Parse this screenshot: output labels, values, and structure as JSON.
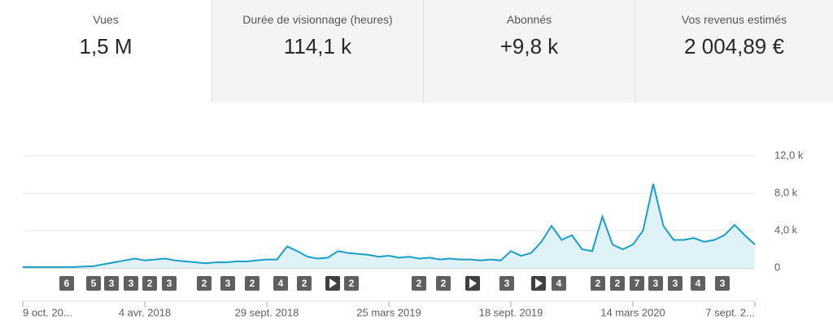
{
  "cards": [
    {
      "label": "Vues",
      "value": "1,5 M"
    },
    {
      "label": "Durée de visionnage (heures)",
      "value": "114,1 k"
    },
    {
      "label": "Abonnés",
      "value": "+9,8 k"
    },
    {
      "label": "Vos revenus estimés",
      "value": "2 004,89 €"
    }
  ],
  "chart_data": {
    "type": "area",
    "color": "#1a9fc9",
    "fill": "#dff2f8",
    "grid": true,
    "categories": [
      "9 oct. 20...",
      null,
      null,
      null,
      null,
      null,
      null,
      null,
      null,
      null,
      null,
      null,
      "4 avr. 2018",
      null,
      null,
      null,
      null,
      null,
      null,
      null,
      null,
      null,
      null,
      null,
      "29 sept. 2018",
      null,
      null,
      null,
      null,
      null,
      null,
      null,
      null,
      null,
      null,
      null,
      "25 mars 2019",
      null,
      null,
      null,
      null,
      null,
      null,
      null,
      null,
      null,
      null,
      null,
      "18 sept. 2019",
      null,
      null,
      null,
      null,
      null,
      null,
      null,
      null,
      null,
      null,
      null,
      "14 mars 2020",
      null,
      null,
      null,
      null,
      null,
      null,
      null,
      null,
      null,
      null,
      null,
      "7 sept. 2..."
    ],
    "values": [
      0.1,
      0.1,
      0.1,
      0.1,
      0.1,
      0.1,
      0.15,
      0.2,
      0.4,
      0.6,
      0.8,
      1.0,
      0.8,
      0.9,
      1.0,
      0.8,
      0.7,
      0.6,
      0.5,
      0.6,
      0.6,
      0.7,
      0.7,
      0.8,
      0.9,
      0.9,
      2.3,
      1.8,
      1.2,
      1.0,
      1.1,
      1.8,
      1.6,
      1.5,
      1.4,
      1.2,
      1.3,
      1.1,
      1.2,
      1.0,
      1.1,
      0.9,
      1.0,
      0.9,
      0.9,
      0.8,
      0.9,
      0.8,
      1.8,
      1.3,
      1.6,
      2.8,
      4.5,
      3.0,
      3.5,
      2.0,
      1.8,
      5.5,
      2.5,
      2.0,
      2.5,
      4.0,
      9.0,
      4.5,
      3.0,
      3.0,
      3.2,
      2.8,
      3.0,
      3.5,
      4.6,
      3.5,
      2.5
    ],
    "ylim": [
      0,
      12
    ],
    "yticks": [
      {
        "value": 0,
        "label": "0"
      },
      {
        "value": 4,
        "label": "4,0 k"
      },
      {
        "value": 8,
        "label": "8,0 k"
      },
      {
        "value": 12,
        "label": "12,0 k"
      }
    ],
    "markers": [
      "6",
      "5",
      "3",
      "3",
      "2",
      "3",
      "2",
      "3",
      "2",
      "4",
      "2",
      "2",
      "2",
      "2",
      "3",
      "4",
      "2",
      "2",
      "7",
      "3",
      "3",
      "4",
      "3"
    ]
  }
}
